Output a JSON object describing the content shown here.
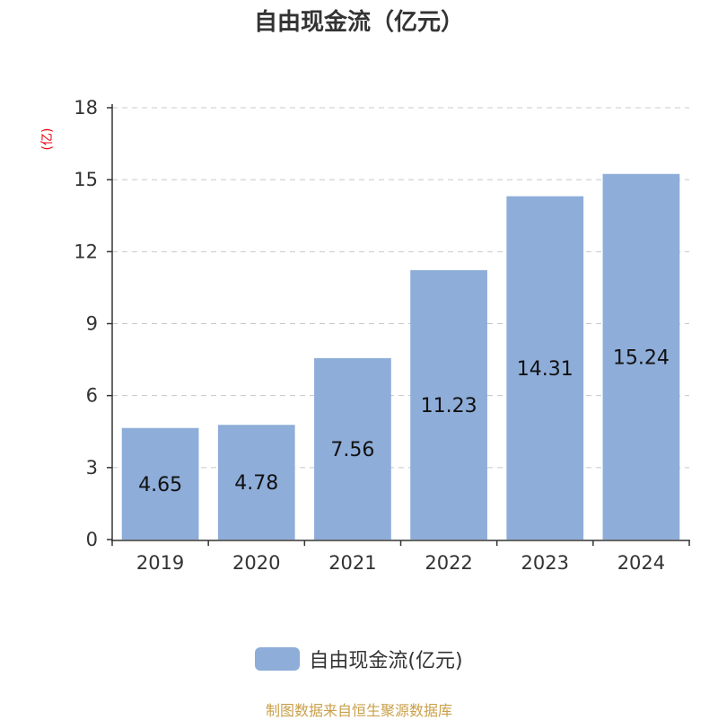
{
  "colors": {
    "bar": "#8eadd9",
    "axis": "#333333",
    "grid": "#c8c8c8",
    "unit_label": "#e8000b",
    "source": "#c9a04a"
  },
  "source_note": "制图数据来自恒生聚源数据库",
  "chart_data": {
    "type": "bar",
    "title": "自由现金流（亿元）",
    "ylabel": "(亿)",
    "xlabel": "",
    "categories": [
      "2019",
      "2020",
      "2021",
      "2022",
      "2023",
      "2024"
    ],
    "series": [
      {
        "name": "自由现金流(亿元)",
        "values": [
          4.65,
          4.78,
          7.56,
          11.23,
          14.31,
          15.24
        ]
      }
    ],
    "ylim": [
      0,
      18
    ],
    "yticks": [
      0,
      3,
      6,
      9,
      12,
      15,
      18
    ],
    "grid": true,
    "legend_position": "bottom"
  }
}
